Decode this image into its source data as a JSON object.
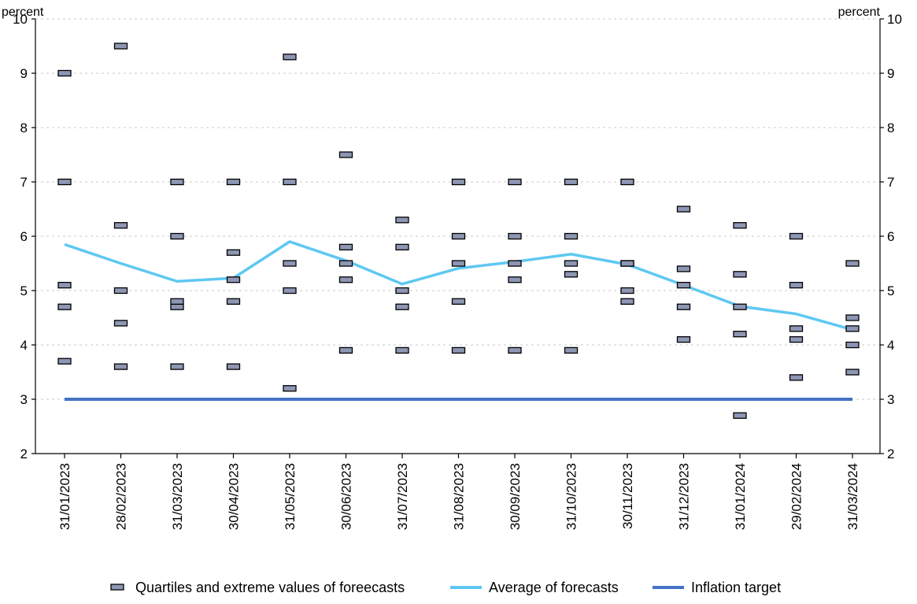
{
  "chart_data": {
    "type": "line",
    "title": "",
    "xlabel": "",
    "ylabel_left": "percent",
    "ylabel_right": "percent",
    "ylim": [
      2,
      10
    ],
    "yticks": [
      2,
      3,
      4,
      5,
      6,
      7,
      8,
      9,
      10
    ],
    "grid": "horizontal dashed",
    "legend_position": "bottom",
    "categories": [
      "31/01/2023",
      "28/02/2023",
      "31/03/2023",
      "30/04/2023",
      "31/05/2023",
      "30/06/2023",
      "31/07/2023",
      "31/08/2023",
      "30/09/2023",
      "31/10/2023",
      "30/11/2023",
      "31/12/2023",
      "31/01/2024",
      "29/02/2024",
      "31/03/2024"
    ],
    "series": [
      {
        "name": "Quartiles and extreme values of foreecasts",
        "kind": "markers",
        "color": "#8d96b3",
        "values": [
          [
            3.7,
            4.7,
            5.1,
            7.0,
            9.0
          ],
          [
            3.6,
            4.4,
            5.0,
            6.2,
            9.5
          ],
          [
            3.6,
            4.7,
            4.8,
            6.0,
            7.0
          ],
          [
            3.6,
            4.8,
            5.2,
            5.7,
            7.0
          ],
          [
            3.2,
            5.0,
            5.5,
            7.0,
            9.3
          ],
          [
            3.9,
            5.2,
            5.5,
            5.8,
            7.5
          ],
          [
            3.9,
            4.7,
            5.0,
            5.8,
            6.3
          ],
          [
            3.9,
            4.8,
            5.5,
            6.0,
            7.0
          ],
          [
            3.9,
            5.2,
            5.5,
            6.0,
            7.0
          ],
          [
            3.9,
            5.3,
            5.5,
            6.0,
            7.0
          ],
          [
            4.8,
            5.0,
            5.5,
            5.5,
            7.0
          ],
          [
            4.1,
            4.7,
            5.1,
            5.4,
            6.5
          ],
          [
            2.7,
            4.2,
            4.7,
            5.3,
            6.2
          ],
          [
            3.4,
            4.1,
            4.3,
            5.1,
            6.0
          ],
          [
            3.5,
            4.0,
            4.3,
            4.5,
            5.5
          ]
        ]
      },
      {
        "name": "Average of forecasts",
        "kind": "line",
        "color": "#5ec8f2",
        "values": [
          5.85,
          5.5,
          5.17,
          5.23,
          5.9,
          5.55,
          5.12,
          5.41,
          5.53,
          5.67,
          5.48,
          5.1,
          4.71,
          4.57,
          4.28
        ]
      },
      {
        "name": "Inflation target",
        "kind": "line",
        "color": "#4472c4",
        "values": [
          3,
          3,
          3,
          3,
          3,
          3,
          3,
          3,
          3,
          3,
          3,
          3,
          3,
          3,
          3
        ]
      }
    ]
  }
}
